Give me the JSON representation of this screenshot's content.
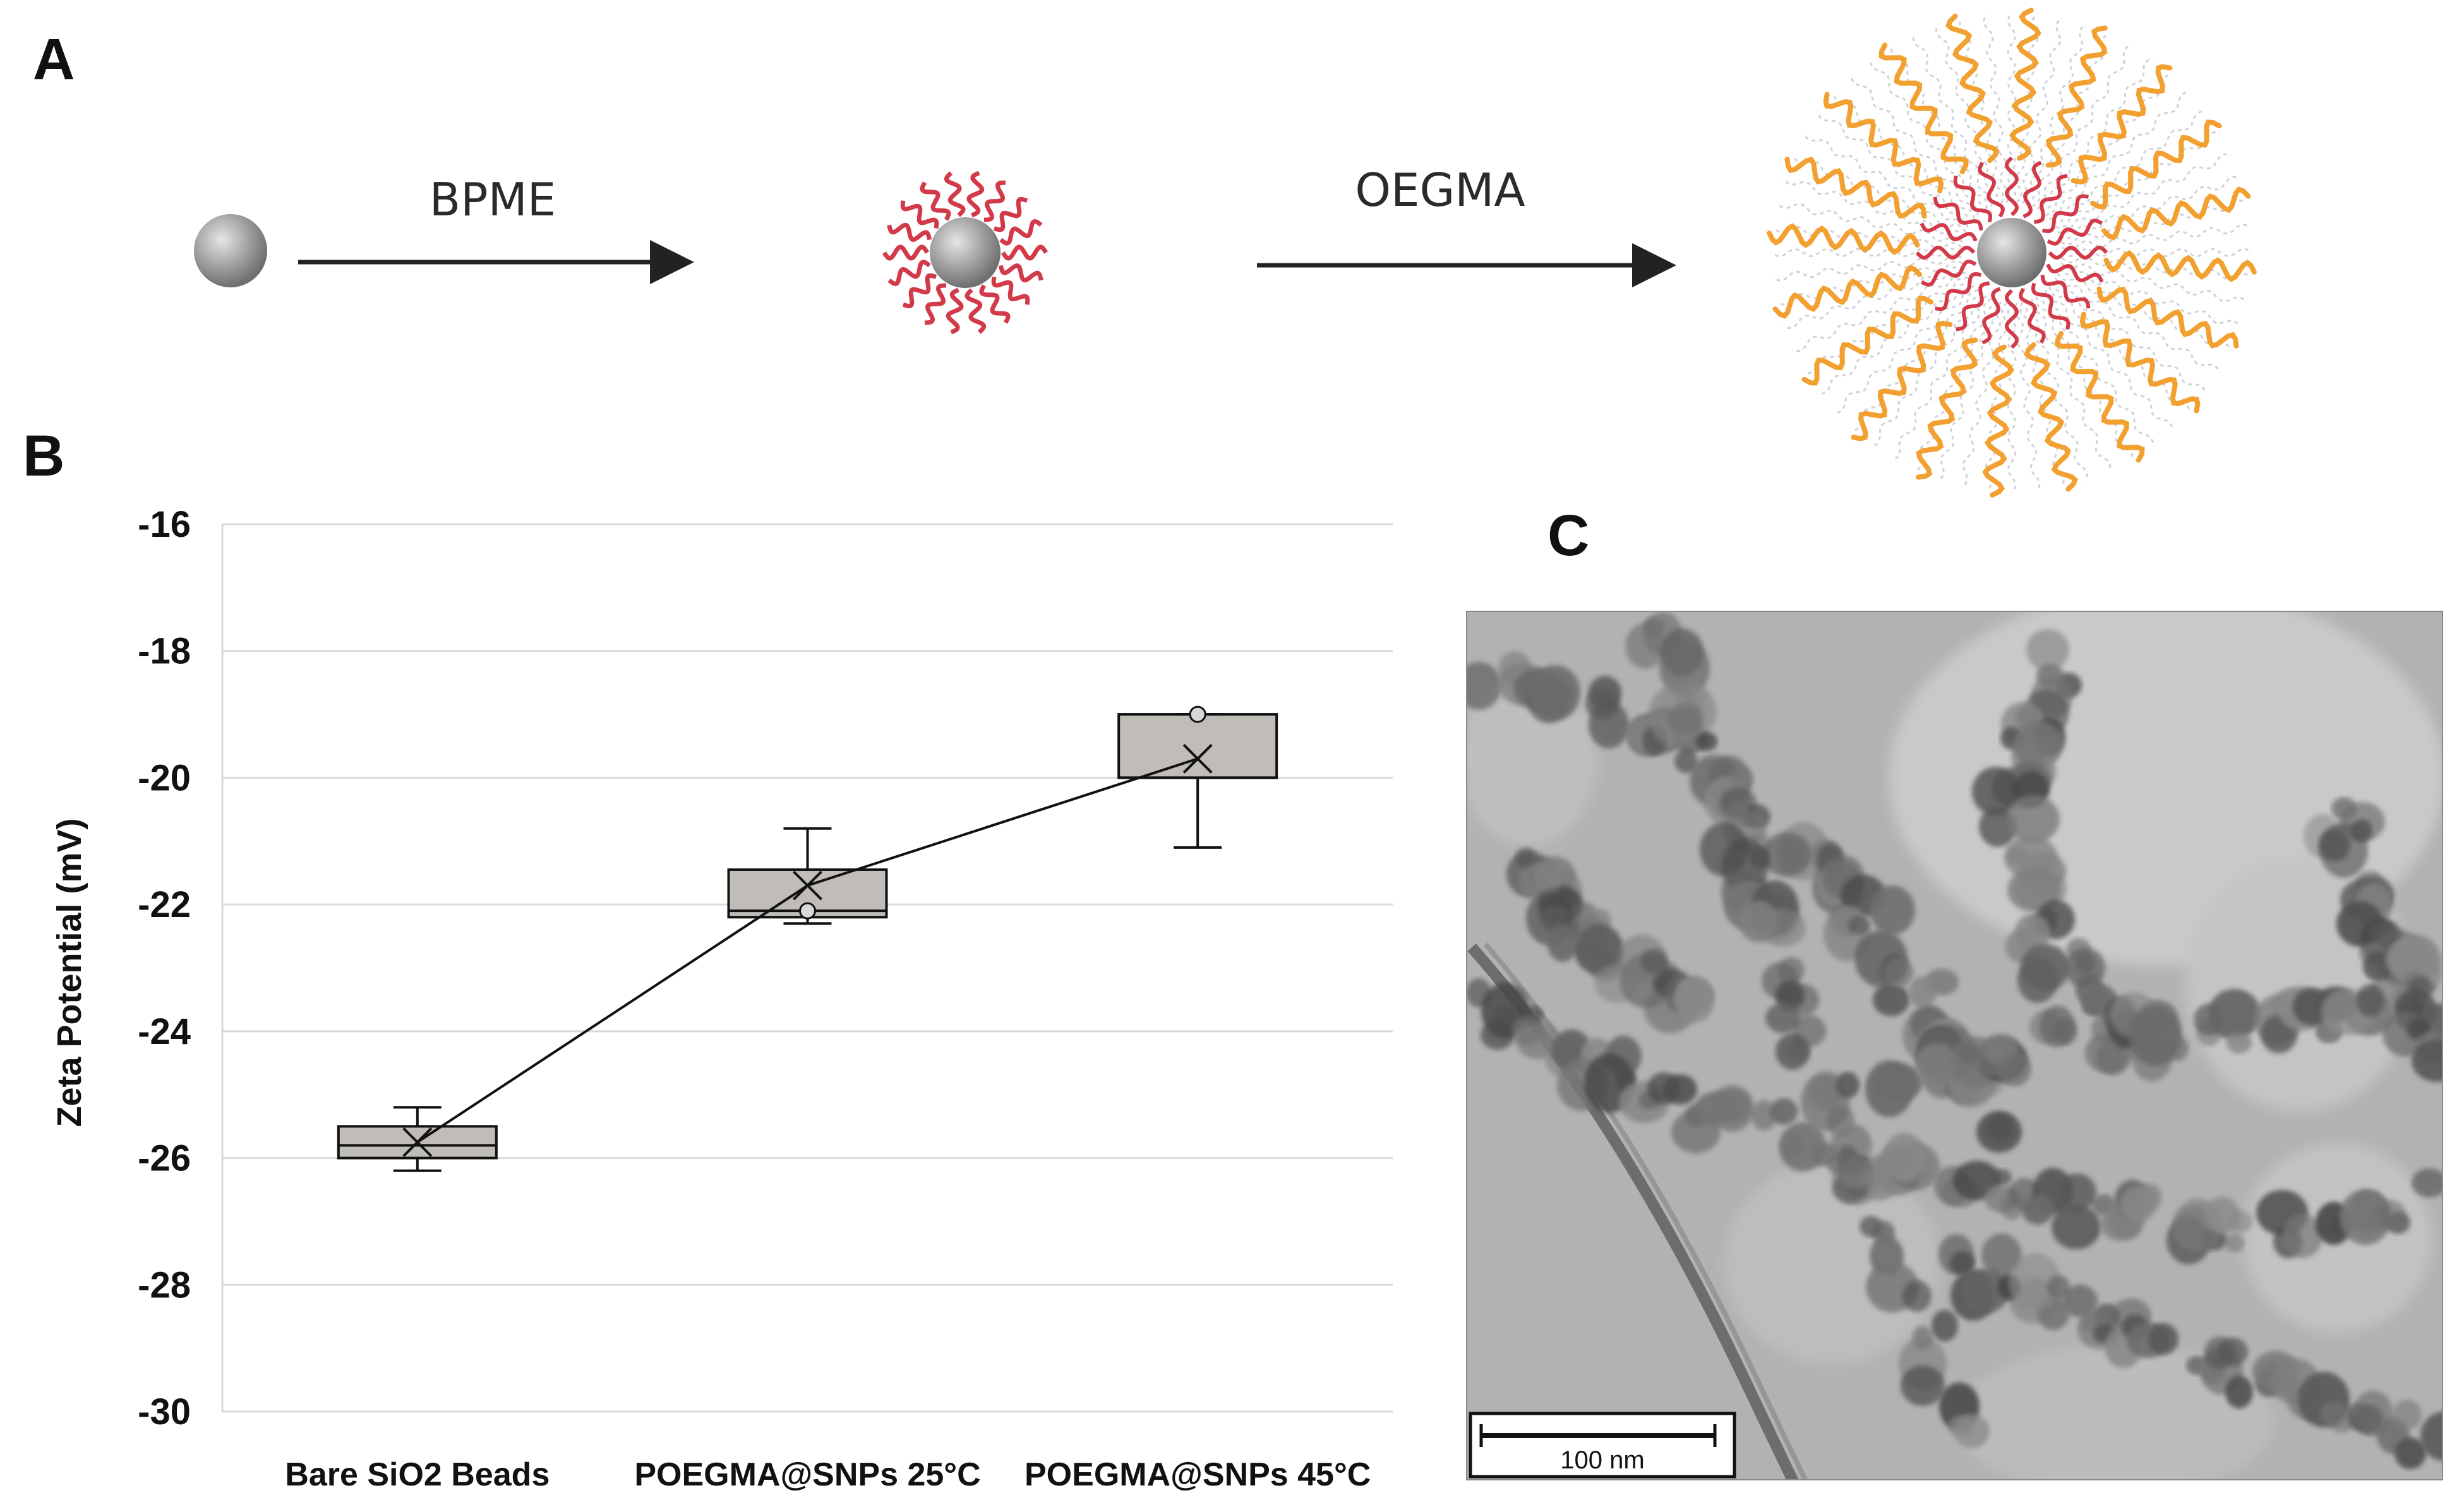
{
  "panels": {
    "a": "A",
    "b": "B",
    "c": "C"
  },
  "scheme": {
    "step1_label": "BPME",
    "step2_label": "OEGMA",
    "colors": {
      "core": "#9a9a9a",
      "initiator": "#d23a4a",
      "polymer": "#f2a030",
      "arrow": "#222222"
    }
  },
  "chart_data": {
    "type": "box",
    "categories": [
      "Bare SiO2 Beads",
      "POEGMA@SNPs 25°C",
      "POEGMA@SNPs 45°C"
    ],
    "ylabel": "Zeta Potential (mV)",
    "xlabel": "",
    "ylim": [
      -30,
      -16
    ],
    "yticks": [
      -16,
      -18,
      -20,
      -22,
      -24,
      -26,
      -28,
      -30
    ],
    "grid": true,
    "boxes": [
      {
        "category": "Bare SiO2 Beads",
        "whisker_low": -26.2,
        "q1": -26.0,
        "median": -25.8,
        "q3": -25.5,
        "whisker_high": -25.2,
        "mean": -25.75,
        "outliers": []
      },
      {
        "category": "POEGMA@SNPs 25°C",
        "whisker_low": -22.3,
        "q1": -22.2,
        "median": -22.1,
        "q3": -21.45,
        "whisker_high": -20.8,
        "mean": -21.7,
        "outliers": [
          -22.1
        ]
      },
      {
        "category": "POEGMA@SNPs 45°C",
        "whisker_low": -21.1,
        "q1": -20.0,
        "median": -20.0,
        "q3": -19.0,
        "whisker_high": -19.0,
        "mean": -19.7,
        "outliers": [
          -19.0
        ]
      }
    ],
    "mean_line": true,
    "colors": {
      "box_fill": "#c0bcb8",
      "box_stroke": "#111111",
      "grid": "#d9d9d9"
    }
  },
  "micrograph": {
    "scale_bar_label": "100 nm"
  }
}
